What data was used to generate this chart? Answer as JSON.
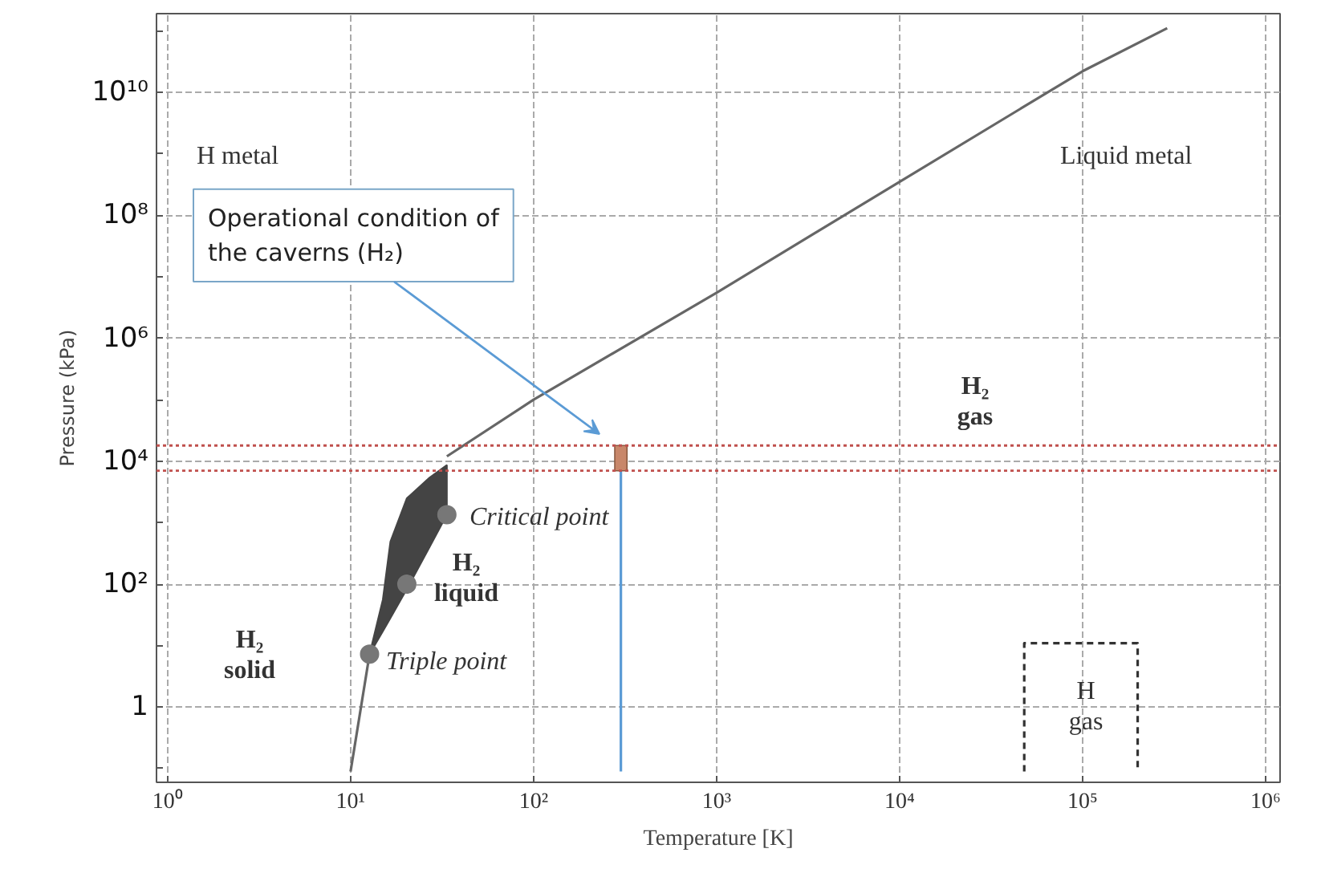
{
  "chart_data": {
    "type": "line",
    "xlabel": "Temperature [K]",
    "ylabel": "Pressure (kPa)",
    "log": "xy",
    "xlim": [
      0.87,
      1200000
    ],
    "ylim": [
      0.06,
      190000000000
    ],
    "xticks": [
      {
        "value": 1,
        "label": "10⁰"
      },
      {
        "value": 10,
        "label": "10¹"
      },
      {
        "value": 100,
        "label": "10²"
      },
      {
        "value": 1000,
        "label": "10³"
      },
      {
        "value": 10000,
        "label": "10⁴"
      },
      {
        "value": 100000,
        "label": "10⁵"
      },
      {
        "value": 1000000,
        "label": "10⁶"
      }
    ],
    "yticks": [
      {
        "value": 0.1,
        "label": null
      },
      1,
      {
        "value": 10,
        "label": null
      },
      {
        "value": 100,
        "label": "10²"
      },
      {
        "value": 1000,
        "label": null
      },
      {
        "value": 10000,
        "label": "10⁴"
      },
      {
        "value": 100000,
        "label": null
      },
      {
        "value": 1000000,
        "label": "10⁶"
      },
      {
        "value": 10000000,
        "label": null
      },
      {
        "value": 100000000,
        "label": "10⁸"
      },
      {
        "value": 1000000000,
        "label": null
      },
      {
        "value": 10000000000,
        "label": "10¹⁰"
      },
      {
        "value": 100000000000,
        "label": null
      }
    ],
    "grid": true,
    "series": [
      {
        "type": "area",
        "color": "#444444",
        "x": [
          12.7,
          15,
          16.5,
          20.3,
          27,
          33.6,
          33.6,
          27,
          20.3,
          16.5,
          15
        ],
        "values": [
          7.3,
          56,
          490,
          2500,
          5400,
          8700,
          1350,
          400,
          83,
          28,
          17
        ]
      },
      {
        "color": "#666666",
        "x": [
          10,
          12.7
        ],
        "values": [
          0.09,
          7.3
        ]
      },
      {
        "color": "#666666",
        "x": [
          33.6,
          100,
          1000,
          10000,
          100000,
          290000
        ],
        "values": [
          12000,
          100000,
          5500000,
          350000000,
          22000000000,
          110000000000
        ]
      },
      {
        "type": "scatter",
        "color": "#777777",
        "marker": "circle",
        "x": [
          12.7,
          20.3,
          33.6
        ],
        "values": [
          7.3,
          100,
          1350
        ]
      },
      {
        "type": "bar",
        "color": "#c8876a",
        "x": [
          300
        ],
        "base": [
          7000
        ],
        "values": [
          11000
        ]
      },
      {
        "type": "line",
        "color": "#5b9bd5",
        "x": [
          300,
          300
        ],
        "values": [
          7000,
          0.09
        ]
      },
      {
        "type": "line",
        "color": "#333333",
        "line_style": "dashed",
        "x": [
          48000,
          48000,
          200000,
          200000
        ],
        "values": [
          0.09,
          11,
          11,
          0.09
        ]
      }
    ],
    "ref_lines": [
      {
        "axis": "y",
        "value": 18000,
        "color": "#c0504d",
        "line_style": "dotted"
      },
      {
        "axis": "y",
        "value": 7000,
        "color": "#c0504d",
        "line_style": "dotted"
      }
    ],
    "annotations": [
      "Operational condition of\nthe caverns (H₂)",
      "H metal",
      "Liquid metal",
      "H₂\ngas",
      "H₂\nliquid",
      "H₂\nsolid",
      "Critical point",
      "Triple point",
      "H\ngas"
    ]
  }
}
